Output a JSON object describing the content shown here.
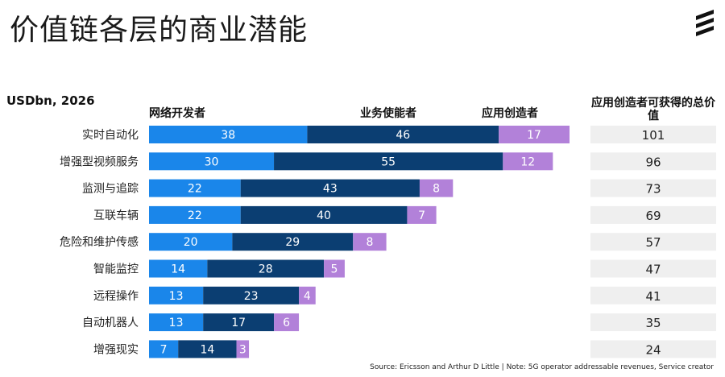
{
  "title": "价值链各层的商业潜能",
  "logo_text": "Ericsson",
  "chart_data": {
    "type": "bar",
    "orientation": "horizontal",
    "stacked": true,
    "unit_label": "USDbn, 2026",
    "categories": [
      "实时自动化",
      "增强型视频服务",
      "监测与追踪",
      "互联车辆",
      "危险和维护传感",
      "智能监控",
      "远程操作",
      "自动机器人",
      "增强现实"
    ],
    "series": [
      {
        "name": "网络开发者",
        "color": "#1a86ea",
        "values": [
          38,
          30,
          22,
          22,
          20,
          14,
          13,
          13,
          7
        ]
      },
      {
        "name": "业务使能者",
        "color": "#0b3e72",
        "values": [
          46,
          55,
          43,
          40,
          29,
          28,
          23,
          17,
          14
        ]
      },
      {
        "name": "应用创造者",
        "color": "#b281d9",
        "values": [
          17,
          12,
          8,
          7,
          8,
          5,
          4,
          6,
          3
        ]
      }
    ],
    "totals_header": "应用创造者可获得的总价值",
    "totals": [
      101,
      96,
      73,
      69,
      57,
      47,
      41,
      35,
      24
    ],
    "grid": false
  },
  "source": "Source: Ericsson and Arthur D Little  |  Note: 5G operator addressable revenues, Service creator"
}
